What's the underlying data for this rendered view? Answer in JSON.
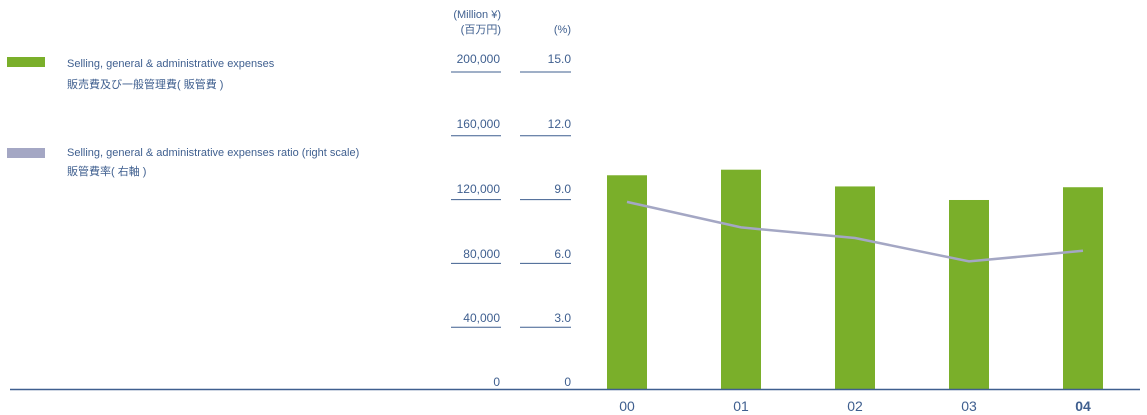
{
  "legend": {
    "items": [
      {
        "en": "Selling, general & administrative expenses",
        "ja": "販売費及び一般管理費( 販管費 )",
        "color": "#7aaf2a",
        "icon": "bar-swatch"
      },
      {
        "en": "Selling, general & administrative expenses ratio (right scale)",
        "ja": "販管費率( 右軸 )",
        "color": "#a4a7c4",
        "icon": "line-swatch"
      }
    ]
  },
  "axis_units": {
    "left": {
      "en": "(Million ¥)",
      "ja": "(百万円)"
    },
    "right": "(%)"
  },
  "chart_data": {
    "type": "bar",
    "categories": [
      "00",
      "01",
      "02",
      "03",
      "04"
    ],
    "highlight_category": "04",
    "left_axis": {
      "ticks": [
        "200,000",
        "160,000",
        "120,000",
        "80,000",
        "40,000",
        "0"
      ],
      "ylim": [
        0,
        200000
      ]
    },
    "right_axis": {
      "ticks": [
        "15.0",
        "12.0",
        "9.0",
        "6.0",
        "3.0",
        "0"
      ],
      "ylim": [
        0,
        15
      ]
    },
    "series": [
      {
        "name": "Selling, general & administrative expenses",
        "type": "bar",
        "axis": "left",
        "color": "#7aaf2a",
        "values": [
          134000,
          137500,
          127000,
          118500,
          126500
        ]
      },
      {
        "name": "Selling, general & administrative expenses ratio (right scale)",
        "type": "line",
        "axis": "right",
        "color": "#a4a7c4",
        "values": [
          8.8,
          7.6,
          7.1,
          6.0,
          6.5
        ]
      }
    ],
    "grid": false
  }
}
